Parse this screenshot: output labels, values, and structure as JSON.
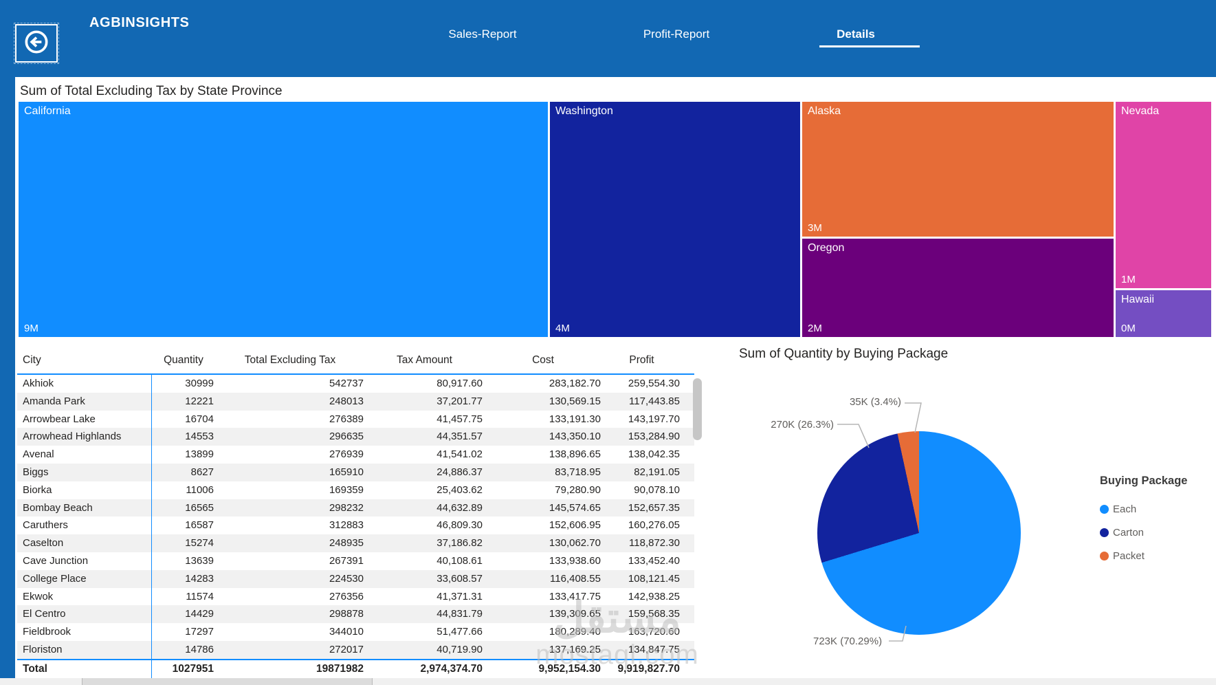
{
  "header": {
    "brand": "AGBINSIGHTS",
    "back_button_label": "back",
    "tabs": [
      {
        "label": "Sales-Report",
        "active": false
      },
      {
        "label": "Profit-Report",
        "active": false
      },
      {
        "label": "Details",
        "active": true
      }
    ]
  },
  "treemap": {
    "title": "Sum of Total Excluding Tax by State Province",
    "tiles": [
      {
        "state": "California",
        "value_label": "9M",
        "color": "#118DFF"
      },
      {
        "state": "Washington",
        "value_label": "4M",
        "color": "#12239E"
      },
      {
        "state": "Alaska",
        "value_label": "3M",
        "color": "#E66C37"
      },
      {
        "state": "Oregon",
        "value_label": "2M",
        "color": "#6B007B"
      },
      {
        "state": "Nevada",
        "value_label": "1M",
        "color": "#E044A7"
      },
      {
        "state": "Hawaii",
        "value_label": "0M",
        "color": "#744EC2"
      }
    ]
  },
  "table": {
    "columns": [
      "City",
      "Quantity",
      "Total Excluding Tax",
      "Tax Amount",
      "Cost",
      "Profit"
    ],
    "rows": [
      [
        "Akhiok",
        "30999",
        "542737",
        "80,917.60",
        "283,182.70",
        "259,554.30"
      ],
      [
        "Amanda Park",
        "12221",
        "248013",
        "37,201.77",
        "130,569.15",
        "117,443.85"
      ],
      [
        "Arrowbear Lake",
        "16704",
        "276389",
        "41,457.75",
        "133,191.30",
        "143,197.70"
      ],
      [
        "Arrowhead Highlands",
        "14553",
        "296635",
        "44,351.57",
        "143,350.10",
        "153,284.90"
      ],
      [
        "Avenal",
        "13899",
        "276939",
        "41,541.02",
        "138,896.65",
        "138,042.35"
      ],
      [
        "Biggs",
        "8627",
        "165910",
        "24,886.37",
        "83,718.95",
        "82,191.05"
      ],
      [
        "Biorka",
        "11006",
        "169359",
        "25,403.62",
        "79,280.90",
        "90,078.10"
      ],
      [
        "Bombay Beach",
        "16565",
        "298232",
        "44,632.89",
        "145,574.65",
        "152,657.35"
      ],
      [
        "Caruthers",
        "16587",
        "312883",
        "46,809.30",
        "152,606.95",
        "160,276.05"
      ],
      [
        "Caselton",
        "15274",
        "248935",
        "37,186.82",
        "130,062.70",
        "118,872.30"
      ],
      [
        "Cave Junction",
        "13639",
        "267391",
        "40,108.61",
        "133,938.60",
        "133,452.40"
      ],
      [
        "College Place",
        "14283",
        "224530",
        "33,608.57",
        "116,408.55",
        "108,121.45"
      ],
      [
        "Ekwok",
        "11574",
        "276356",
        "41,371.31",
        "133,417.75",
        "142,938.25"
      ],
      [
        "El Centro",
        "14429",
        "298878",
        "44,831.79",
        "139,309.65",
        "159,568.35"
      ],
      [
        "Fieldbrook",
        "17297",
        "344010",
        "51,477.66",
        "180,289.40",
        "163,720.60"
      ],
      [
        "Floriston",
        "14786",
        "272017",
        "40,719.90",
        "137,169.25",
        "134,847.75"
      ]
    ],
    "total_row": [
      "Total",
      "1027951",
      "19871982",
      "2,974,374.70",
      "9,952,154.30",
      "9,919,827.70"
    ],
    "accent_color": "#118DFF"
  },
  "pie": {
    "title": "Sum of Quantity by Buying Package",
    "legend_title": "Buying Package",
    "slices": [
      {
        "label": "Each",
        "value": "723K",
        "percent": 70.29,
        "color": "#118DFF",
        "callout": "723K (70.29%)"
      },
      {
        "label": "Carton",
        "value": "270K",
        "percent": 26.3,
        "color": "#12239E",
        "callout": "270K (26.3%)"
      },
      {
        "label": "Packet",
        "value": "35K",
        "percent": 3.4,
        "color": "#E66C37",
        "callout": "35K (3.4%)"
      }
    ]
  },
  "watermark": {
    "text_arabic": "مستقل",
    "text_latin": "mostaql.com"
  },
  "chart_data": [
    {
      "type": "treemap",
      "title": "Sum of Total Excluding Tax by State Province",
      "categories": [
        "California",
        "Washington",
        "Alaska",
        "Oregon",
        "Nevada",
        "Hawaii"
      ],
      "values_label": [
        "9M",
        "4M",
        "3M",
        "2M",
        "1M",
        "0M"
      ],
      "values_millions": [
        9,
        4,
        3,
        2,
        1,
        0.4
      ],
      "colors": [
        "#118DFF",
        "#12239E",
        "#E66C37",
        "#6B007B",
        "#E044A7",
        "#744EC2"
      ]
    },
    {
      "type": "pie",
      "title": "Sum of Quantity by Buying Package",
      "categories": [
        "Each",
        "Carton",
        "Packet"
      ],
      "values": [
        723000,
        270000,
        35000
      ],
      "percents": [
        70.29,
        26.3,
        3.4
      ],
      "colors": [
        "#118DFF",
        "#12239E",
        "#E66C37"
      ],
      "legend_position": "right"
    },
    {
      "type": "table",
      "title": "City details",
      "columns": [
        "City",
        "Quantity",
        "Total Excluding Tax",
        "Tax Amount",
        "Cost",
        "Profit"
      ],
      "total": [
        "Total",
        1027951,
        19871982,
        2974374.7,
        9952154.3,
        9919827.7
      ]
    }
  ]
}
